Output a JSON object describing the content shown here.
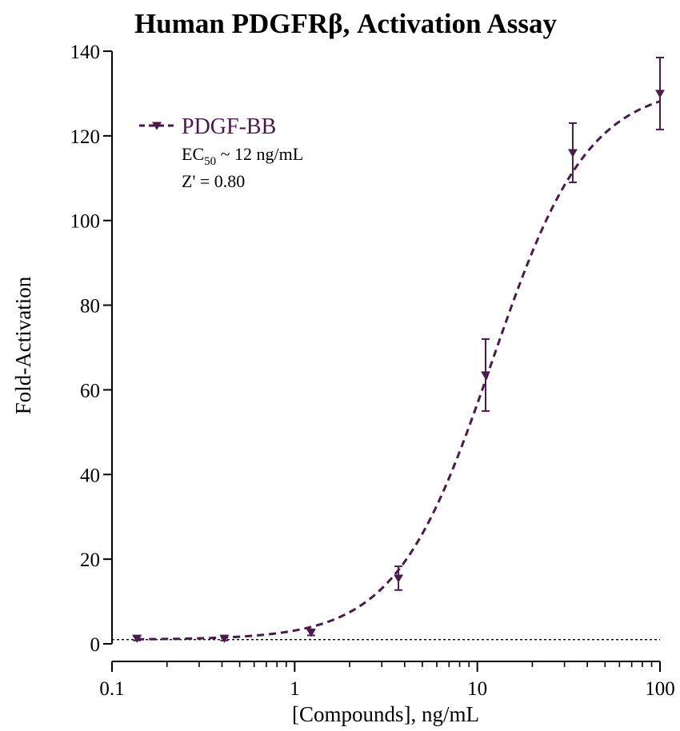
{
  "chart_data": {
    "type": "scatter",
    "title": "Human PDGFRβ, Activation Assay",
    "xlabel": "[Compounds], ng/mL",
    "ylabel": "Fold-Activation",
    "x_scale": "log",
    "xlim": [
      0.1,
      100
    ],
    "ylim": [
      0,
      140
    ],
    "x_ticks": [
      "0.1",
      "1",
      "10",
      "100"
    ],
    "y_ticks": [
      "0",
      "20",
      "40",
      "60",
      "80",
      "100",
      "120",
      "140"
    ],
    "grid": false,
    "legend_placement": "top-left",
    "baseline_value": 1,
    "series": [
      {
        "name": "PDGF-BB",
        "color": "#4a1a4a",
        "marker": "down-triangle",
        "line_style": "dashed",
        "x": [
          0.137,
          0.412,
          1.23,
          3.7,
          11.1,
          33.3,
          100
        ],
        "y": [
          1.3,
          1.3,
          2.7,
          15.5,
          63.5,
          116.0,
          130.0
        ],
        "error": [
          0.5,
          0.5,
          0.7,
          2.8,
          8.5,
          7.0,
          8.5
        ]
      }
    ],
    "annotations": {
      "ec50_prefix": "EC",
      "ec50_sub": "50",
      "ec50_value": " ~ 12 ng/mL",
      "z_prime": "Z' = 0.80"
    }
  }
}
